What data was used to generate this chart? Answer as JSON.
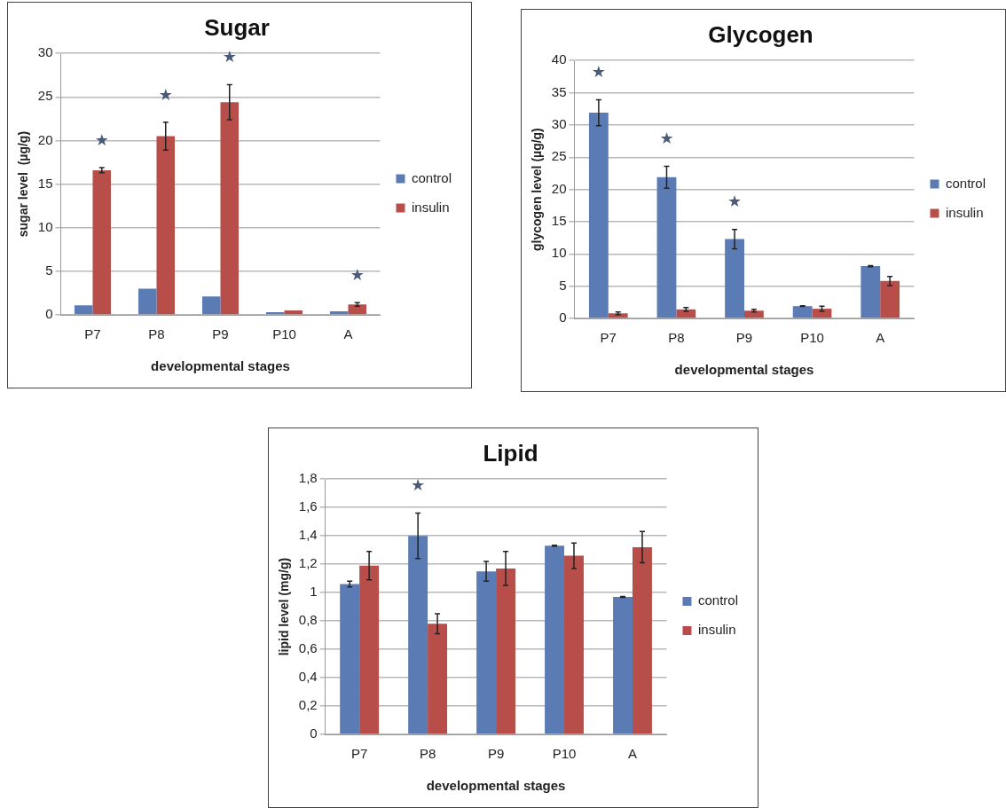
{
  "chart_data": [
    {
      "type": "bar",
      "title": "Sugar",
      "xlabel": "developmental stages",
      "ylabel": "sugar level  (µg/g)",
      "categories": [
        "P7",
        "P8",
        "P9",
        "P10",
        "A"
      ],
      "series": [
        {
          "name": "control",
          "color": "#5b7bb4",
          "values": [
            1.1,
            3.0,
            2.1,
            0.3,
            0.4
          ]
        },
        {
          "name": "insulin",
          "color": "#b84e4a",
          "values": [
            16.6,
            20.5,
            24.4,
            0.5,
            1.2
          ],
          "errors": [
            0.3,
            1.6,
            2.0,
            null,
            0.2
          ]
        }
      ],
      "ylim": [
        0,
        30
      ],
      "yticks": [
        0,
        5,
        10,
        15,
        20,
        25,
        30
      ],
      "grid": "y",
      "legend": "right",
      "annotations": [
        {
          "text": "★",
          "x": "P7",
          "y": 16.6
        },
        {
          "text": "★",
          "x": "P8",
          "y": 20.5
        },
        {
          "text": "★",
          "x": "P9",
          "y": 24.4
        },
        {
          "text": "★",
          "x": "A",
          "y": 1.2
        }
      ]
    },
    {
      "type": "bar",
      "title": "Glycogen",
      "xlabel": "developmental stages",
      "ylabel": "glycogen level (µg/g)",
      "categories": [
        "P7",
        "P8",
        "P9",
        "P10",
        "A"
      ],
      "series": [
        {
          "name": "control",
          "color": "#5b7bb4",
          "values": [
            31.9,
            21.9,
            12.3,
            1.9,
            8.1
          ],
          "errors": [
            2.0,
            1.7,
            1.5,
            0.05,
            0.1
          ]
        },
        {
          "name": "insulin",
          "color": "#b84e4a",
          "values": [
            0.8,
            1.4,
            1.2,
            1.5,
            5.8
          ],
          "errors": [
            0.2,
            0.3,
            0.2,
            0.4,
            0.7
          ]
        }
      ],
      "ylim": [
        0,
        40
      ],
      "yticks": [
        0,
        5,
        10,
        15,
        20,
        25,
        30,
        35,
        40
      ],
      "grid": "y",
      "legend": "right",
      "annotations": [
        {
          "text": "★",
          "x": "P7",
          "y": 31.9
        },
        {
          "text": "★",
          "x": "P8",
          "y": 21.9
        },
        {
          "text": "★",
          "x": "P9",
          "y": 12.3
        }
      ]
    },
    {
      "type": "bar",
      "title": "Lipid",
      "xlabel": "developmental stages",
      "ylabel": "lipid level (mg/g)",
      "categories": [
        "P7",
        "P8",
        "P9",
        "P10",
        "A"
      ],
      "series": [
        {
          "name": "control",
          "color": "#5b7bb4",
          "values": [
            1.06,
            1.4,
            1.15,
            1.33,
            0.97
          ],
          "errors": [
            0.02,
            0.16,
            0.07,
            0.003,
            0.003
          ]
        },
        {
          "name": "insulin",
          "color": "#b84e4a",
          "values": [
            1.19,
            0.78,
            1.17,
            1.26,
            1.32
          ],
          "errors": [
            0.1,
            0.07,
            0.12,
            0.09,
            0.11
          ]
        }
      ],
      "ylim": [
        0,
        1.8
      ],
      "yticks": [
        0,
        {
          "value": 0.2,
          "label": "0,2"
        },
        {
          "value": 0.4,
          "label": "0,4"
        },
        {
          "value": 0.6,
          "label": "0,6"
        },
        {
          "value": 0.8,
          "label": "0,8"
        },
        1,
        {
          "value": 1.2,
          "label": "1,2"
        },
        {
          "value": 1.4,
          "label": "1,4"
        },
        {
          "value": 1.6,
          "label": "1,6"
        },
        {
          "value": 1.8,
          "label": "1,8"
        }
      ],
      "grid": "y",
      "legend": "right",
      "annotations": [
        {
          "text": "★",
          "x": "P8",
          "y": 1.4
        }
      ]
    }
  ]
}
